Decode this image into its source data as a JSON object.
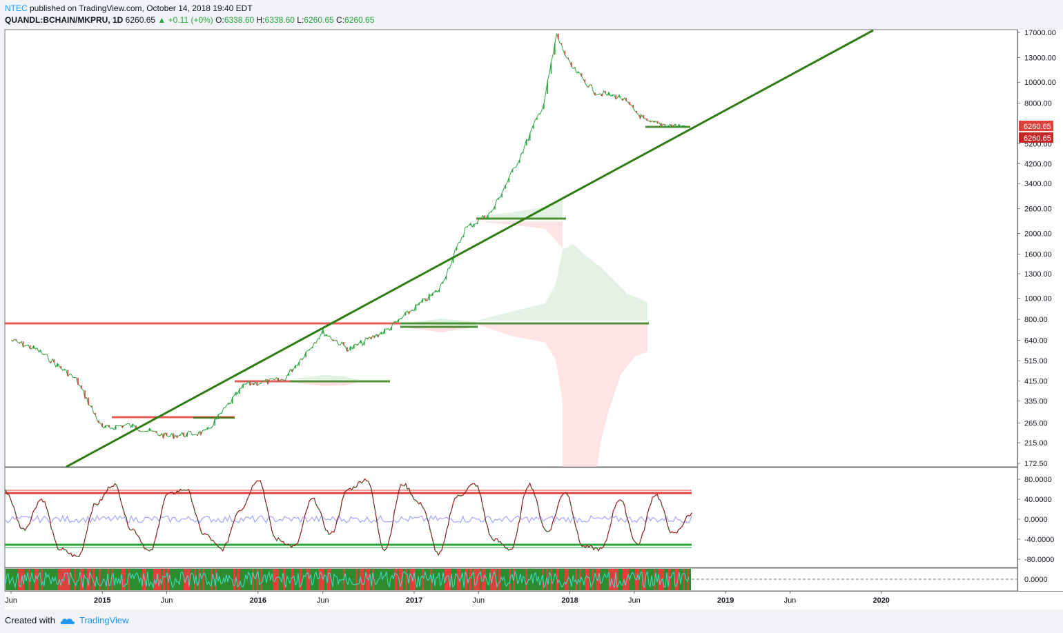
{
  "header": {
    "author": "NTEC",
    "published_text": " published on TradingView.com, October 14, 2018 19:40 EDT",
    "symbol": "QUANDL:BCHAIN/MKPRU, 1D",
    "last": "6260.65",
    "change": "+0.11 (+0%)",
    "o_label": "O:",
    "o_value": "6338.60",
    "h_label": "H:",
    "h_value": "6338.60",
    "l_label": "L:",
    "l_value": "6260.65",
    "c_label": "C:",
    "c_value": "6260.65"
  },
  "footer": {
    "created_with": "Created with",
    "brand": "TradingView"
  },
  "colors": {
    "up": "#26a63b",
    "down": "#e0403a",
    "trend": "#2e7d12",
    "osc_line": "#7b1f1f",
    "baseline": "#8c8cff",
    "price_label": "#e0403a"
  },
  "chart_data": [
    {
      "type": "line",
      "scale": "log",
      "title": "",
      "y_ticks": [
        "17000.00",
        "13000.00",
        "10000.00",
        "8000.00",
        "6260.65",
        "5200.00",
        "4200.00",
        "3400.00",
        "2600.00",
        "2000.00",
        "1600.00",
        "1300.00",
        "1000.00",
        "800.00",
        "640.00",
        "515.00",
        "415.00",
        "335.00",
        "265.00",
        "215.00",
        "172.50"
      ],
      "x_ticks": [
        "Jun",
        "2015",
        "Jun",
        "2016",
        "Jun",
        "2017",
        "Jun",
        "2018",
        "Jun",
        "2019",
        "Jun",
        "2020"
      ],
      "price_labels": [
        "6260.65",
        "6260.65"
      ],
      "x": [
        "2014-06",
        "2014-08",
        "2014-11",
        "2015-01",
        "2015-03",
        "2015-06",
        "2015-09",
        "2015-12",
        "2016-03",
        "2016-06",
        "2016-08",
        "2016-11",
        "2017-01",
        "2017-03",
        "2017-05",
        "2017-07",
        "2017-09",
        "2017-11",
        "2017-12",
        "2018-01",
        "2018-03",
        "2018-05",
        "2018-07",
        "2018-09",
        "2018-10"
      ],
      "series": [
        {
          "values": [
            640,
            580,
            420,
            250,
            260,
            230,
            240,
            400,
            420,
            700,
            580,
            720,
            900,
            1100,
            2100,
            2500,
            4300,
            8000,
            16500,
            12000,
            9000,
            8500,
            6500,
            6300,
            6260
          ]
        }
      ],
      "annotations": {
        "trendline": [
          [
            "2014-12-15",
            172.5
          ],
          [
            "2019-12-20",
            17000
          ]
        ],
        "resistance_red": [
          {
            "price": 760,
            "from": "2014-06",
            "to": "2016-11"
          },
          {
            "price": 275,
            "from": "2015-01",
            "to": "2015-11"
          },
          {
            "price": 405,
            "from": "2015-11",
            "to": "2016-03"
          }
        ],
        "support_green": [
          {
            "price": 405,
            "from": "2016-01",
            "to": "2016-11"
          },
          {
            "price": 760,
            "from": "2016-11",
            "to": "2018-01-15"
          },
          {
            "price": 2380,
            "from": "2017-06",
            "to": "2018-01"
          },
          {
            "price": 6150,
            "from": "2018-06",
            "to": "2018-10"
          }
        ]
      }
    },
    {
      "type": "line",
      "title": "",
      "y_ticks": [
        "80.0000",
        "40.0000",
        "0.0000",
        "-40.0000",
        "-80.0000"
      ],
      "ylim": [
        -100,
        100
      ],
      "bands": {
        "upper": 55,
        "lower": -50
      },
      "series": [
        {
          "values": [
            55,
            -20,
            40,
            -60,
            -75,
            30,
            70,
            -20,
            -65,
            50,
            60,
            -30,
            -60,
            20,
            80,
            -40,
            -55,
            40,
            -30,
            60,
            80,
            -60,
            70,
            30,
            -70,
            45,
            70,
            -40,
            -60,
            70,
            -25,
            55,
            -55,
            -60,
            40,
            -50,
            50,
            -30,
            10
          ]
        }
      ]
    },
    {
      "type": "bar",
      "title": "",
      "y_ticks": [
        "0.0000"
      ],
      "note": "histogram strip"
    }
  ]
}
